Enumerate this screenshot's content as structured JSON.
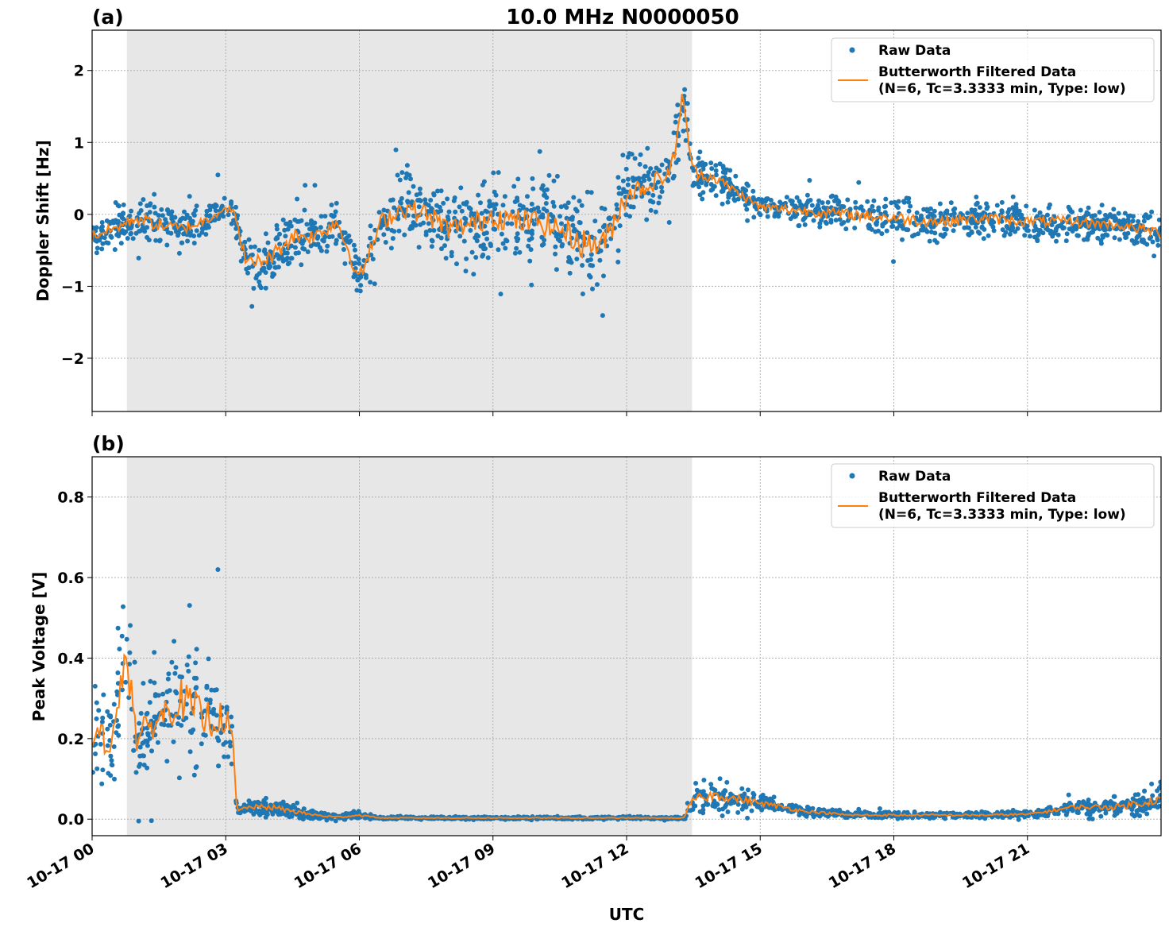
{
  "colors": {
    "raw": "#1f77b4",
    "filtered": "#ff7f0e",
    "shade": "#e7e7e7"
  },
  "chart_data": [
    {
      "type": "scatter+line",
      "panel_label": "(a)",
      "title": "10.0 MHz N0000050",
      "xlabel": "",
      "ylabel": "Doppler Shift [Hz]",
      "xlim_hours": [
        0,
        24
      ],
      "ylim": [
        -2.74,
        2.56
      ],
      "grid": true,
      "legend_placement": "top-right",
      "yticks": [
        {
          "v": 2,
          "t": "2"
        },
        {
          "v": 1,
          "t": "1"
        },
        {
          "v": 0,
          "t": "0"
        },
        {
          "v": -1,
          "t": "−1"
        },
        {
          "v": -2,
          "t": "−2"
        }
      ],
      "shaded_hours": [
        0.78,
        13.47
      ],
      "legend": [
        "Raw Data",
        "Butterworth Filtered Data",
        "(N=6, Tc=3.3333 min, Type: low)"
      ],
      "filtered": {
        "t": [
          0,
          0.5,
          1,
          1.5,
          2,
          2.5,
          3,
          3.15,
          3.5,
          4,
          4.5,
          5,
          5.5,
          6,
          6.5,
          7,
          7.5,
          8,
          8.5,
          9,
          9.5,
          10,
          10.5,
          11,
          11.5,
          12,
          12.5,
          13,
          13.25,
          13.5,
          14,
          14.5,
          15,
          16,
          17,
          18,
          19,
          20,
          21,
          22,
          23,
          24
        ],
        "v": [
          -0.3,
          -0.2,
          -0.05,
          -0.15,
          -0.2,
          -0.1,
          0.1,
          0.05,
          -0.7,
          -0.6,
          -0.3,
          -0.3,
          -0.1,
          -0.9,
          -0.1,
          0.1,
          0.0,
          -0.2,
          -0.15,
          0.0,
          -0.1,
          -0.1,
          -0.2,
          -0.4,
          -0.4,
          0.3,
          0.4,
          0.6,
          1.6,
          0.6,
          0.5,
          0.3,
          0.1,
          0.05,
          0.0,
          -0.05,
          -0.1,
          -0.05,
          -0.1,
          -0.1,
          -0.15,
          -0.25
        ]
      },
      "raw_spread": [
        0.3,
        0.3,
        0.35,
        0.35,
        0.35,
        0.3,
        0.2,
        0.3,
        0.45,
        0.45,
        0.45,
        0.4,
        0.4,
        0.4,
        0.5,
        0.6,
        0.6,
        0.6,
        0.6,
        0.7,
        0.7,
        0.7,
        0.7,
        0.8,
        0.8,
        0.7,
        0.5,
        0.6,
        0.6,
        0.4,
        0.3,
        0.25,
        0.25,
        0.3,
        0.3,
        0.35,
        0.35,
        0.3,
        0.3,
        0.3,
        0.25,
        0.3
      ]
    },
    {
      "type": "scatter+line",
      "panel_label": "(b)",
      "xlabel": "UTC",
      "ylabel": "Peak Voltage [V]",
      "xlim_hours": [
        0,
        24
      ],
      "ylim": [
        -0.041,
        0.9
      ],
      "grid": true,
      "legend_placement": "top-right",
      "yticks": [
        {
          "v": 0.8,
          "t": "0.8"
        },
        {
          "v": 0.6,
          "t": "0.6"
        },
        {
          "v": 0.4,
          "t": "0.4"
        },
        {
          "v": 0.2,
          "t": "0.2"
        },
        {
          "v": 0,
          "t": "0.0"
        }
      ],
      "shaded_hours": [
        0.78,
        13.47
      ],
      "legend": [
        "Raw Data",
        "Butterworth Filtered Data",
        "(N=6, Tc=3.3333 min, Type: low)"
      ],
      "filtered": {
        "t": [
          0,
          0.5,
          0.75,
          1,
          1.5,
          2,
          2.5,
          3,
          3.15,
          3.25,
          3.5,
          4,
          4.5,
          5,
          5.5,
          6,
          6.5,
          9,
          12,
          13.3,
          13.4,
          13.5,
          14,
          14.5,
          15,
          16,
          17,
          18,
          19,
          20,
          21,
          21.5,
          22,
          23,
          24
        ],
        "v": [
          0.2,
          0.2,
          0.45,
          0.2,
          0.25,
          0.3,
          0.25,
          0.25,
          0.2,
          0.02,
          0.03,
          0.03,
          0.02,
          0.01,
          0.005,
          0.01,
          0.003,
          0.003,
          0.003,
          0.003,
          0.03,
          0.05,
          0.06,
          0.05,
          0.04,
          0.02,
          0.01,
          0.01,
          0.01,
          0.01,
          0.012,
          0.02,
          0.03,
          0.03,
          0.05
        ]
      },
      "raw_spread": [
        0.15,
        0.15,
        0.3,
        0.15,
        0.15,
        0.2,
        0.2,
        0.15,
        0.1,
        0.02,
        0.02,
        0.03,
        0.02,
        0.015,
        0.01,
        0.01,
        0.004,
        0.004,
        0.004,
        0.004,
        0.03,
        0.04,
        0.05,
        0.04,
        0.03,
        0.015,
        0.01,
        0.01,
        0.01,
        0.01,
        0.01,
        0.015,
        0.02,
        0.03,
        0.05
      ]
    }
  ],
  "xticks": [
    {
      "h": 0,
      "t": "10-17 00"
    },
    {
      "h": 3,
      "t": "10-17 03"
    },
    {
      "h": 6,
      "t": "10-17 06"
    },
    {
      "h": 9,
      "t": "10-17 09"
    },
    {
      "h": 12,
      "t": "10-17 12"
    },
    {
      "h": 15,
      "t": "10-17 15"
    },
    {
      "h": 18,
      "t": "10-17 18"
    },
    {
      "h": 21,
      "t": "10-17 21"
    }
  ]
}
